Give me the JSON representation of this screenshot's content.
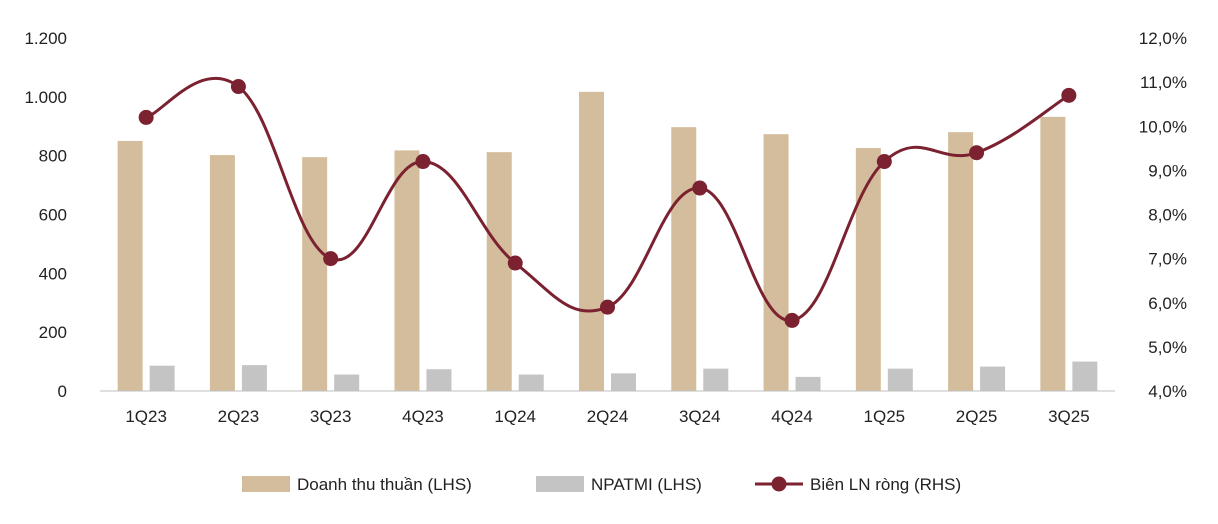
{
  "chart_data": {
    "type": "bar+line",
    "categories": [
      "1Q23",
      "2Q23",
      "3Q23",
      "4Q23",
      "1Q24",
      "2Q24",
      "3Q24",
      "4Q24",
      "1Q25",
      "2Q25",
      "3Q25"
    ],
    "series": [
      {
        "name": "Doanh thu thuần (LHS)",
        "type": "bar",
        "axis": "left",
        "color": "#d4bd9d",
        "values": [
          850,
          802,
          795,
          818,
          812,
          1017,
          897,
          873,
          826,
          880,
          932
        ]
      },
      {
        "name": "NPATMI (LHS)",
        "type": "bar",
        "axis": "left",
        "color": "#c4c4c4",
        "values": [
          86,
          88,
          56,
          74,
          56,
          60,
          76,
          48,
          76,
          83,
          100
        ]
      },
      {
        "name": "Biên LN ròng (RHS)",
        "type": "line",
        "axis": "right",
        "color": "#7b2130",
        "values": [
          10.2,
          10.9,
          7.0,
          9.2,
          6.9,
          5.9,
          8.6,
          5.6,
          9.2,
          9.4,
          10.7
        ]
      }
    ],
    "y_left": {
      "ylim": [
        0,
        1200
      ],
      "ticks": [
        0,
        200,
        400,
        600,
        800,
        1000,
        1200
      ],
      "tick_labels": [
        "0",
        "200",
        "400",
        "600",
        "800",
        "1.000",
        "1.200"
      ]
    },
    "y_right": {
      "ylim": [
        4.0,
        12.0
      ],
      "ticks": [
        4,
        5,
        6,
        7,
        8,
        9,
        10,
        11,
        12
      ],
      "tick_labels": [
        "4,0%",
        "5,0%",
        "6,0%",
        "7,0%",
        "8,0%",
        "9,0%",
        "10,0%",
        "11,0%",
        "12,0%"
      ]
    },
    "grid": false,
    "legend_position": "bottom"
  }
}
